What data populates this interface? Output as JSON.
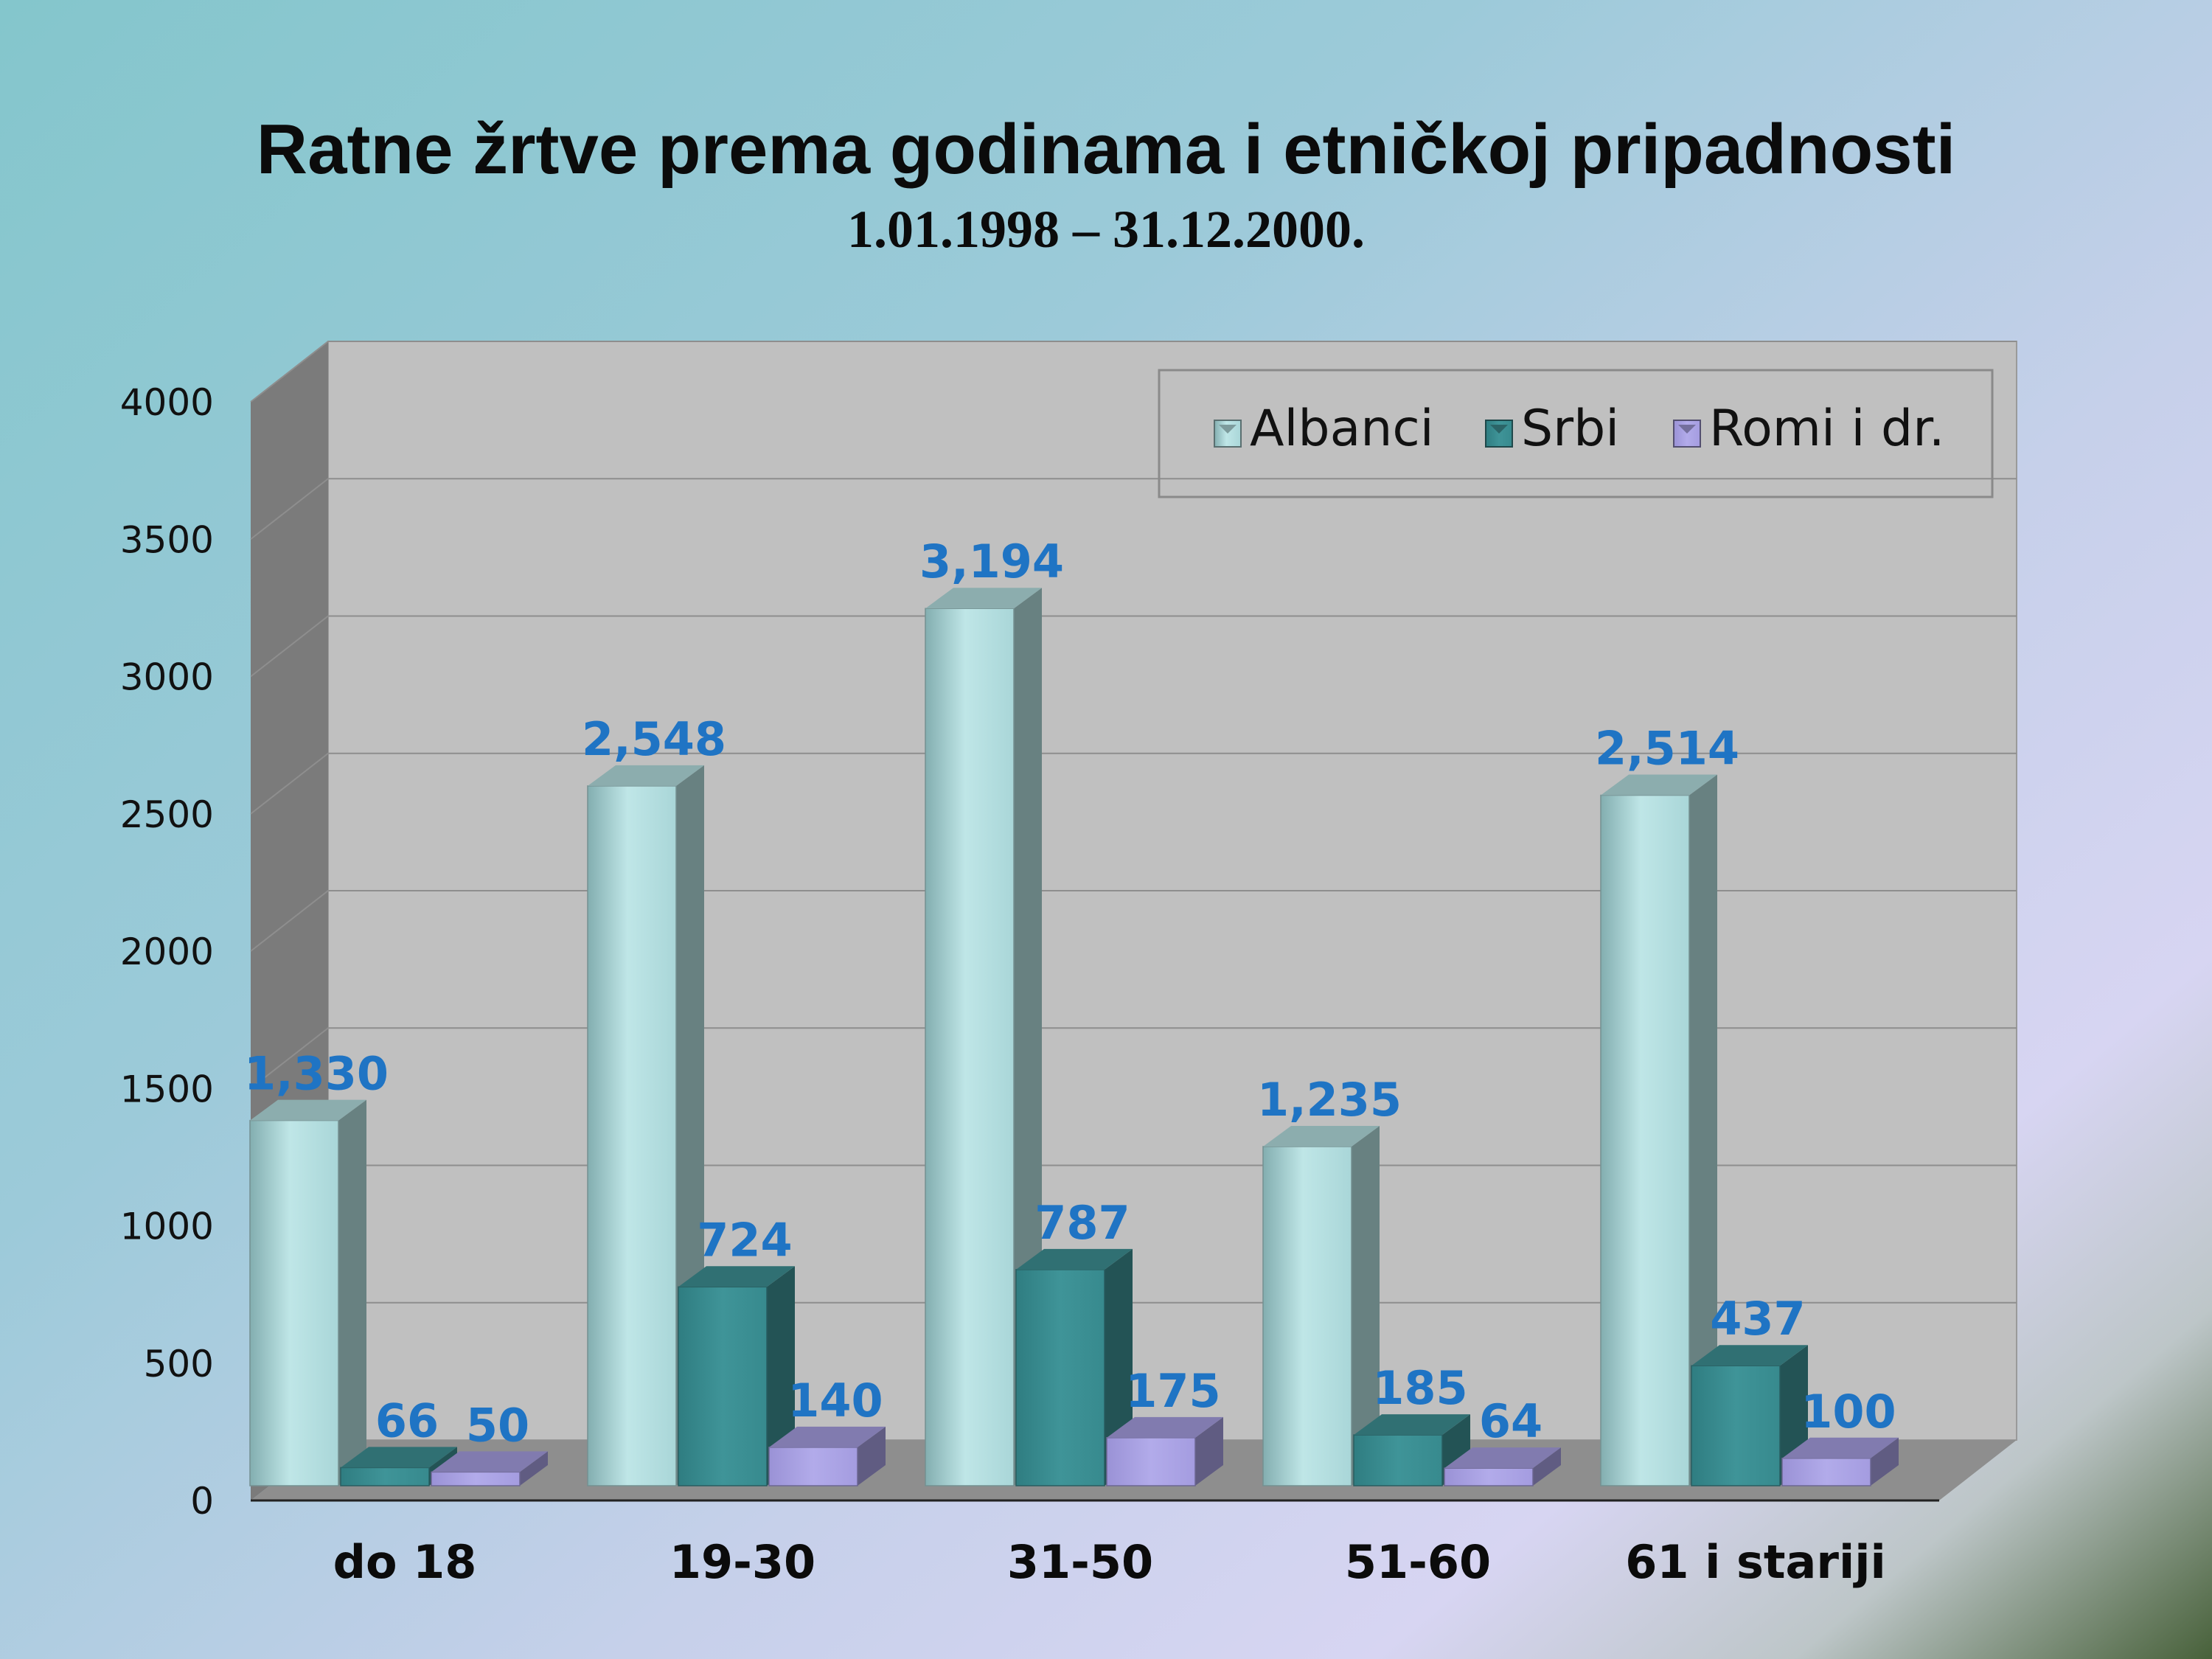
{
  "title": "Ratne žrtve prema godinama i etničkoj pripadnosti",
  "subtitle": "1.01.1998 – 31.12.2000.",
  "chart_data": {
    "type": "bar",
    "categories": [
      "do 18",
      "19-30",
      "31-50",
      "51-60",
      "61 i stariji"
    ],
    "series": [
      {
        "name": "Albanci",
        "values": [
          1330,
          2548,
          3194,
          1235,
          2514
        ],
        "labels": [
          "1,330",
          "2,548",
          "3,194",
          "1,235",
          "2,514"
        ],
        "color": "#b3dedf"
      },
      {
        "name": "Srbi",
        "values": [
          66,
          724,
          787,
          185,
          437
        ],
        "labels": [
          "66",
          "724",
          "787",
          "185",
          "437"
        ],
        "color": "#3d8f93"
      },
      {
        "name": "Romi i dr.",
        "values": [
          50,
          140,
          175,
          64,
          100
        ],
        "labels": [
          "50",
          "140",
          "175",
          "64",
          "100"
        ],
        "color": "#a69ee0"
      }
    ],
    "ylim": [
      0,
      4000
    ],
    "yticks": [
      "0",
      "500",
      "1000",
      "1500",
      "2000",
      "2500",
      "3000",
      "3500",
      "4000"
    ],
    "grid": true,
    "legend": "top-right",
    "label_color": "#1f74c4",
    "wall_color": "#c0c0c0",
    "side_wall_color": "#7b7b7b",
    "floor_color": "#8e8e8e"
  }
}
